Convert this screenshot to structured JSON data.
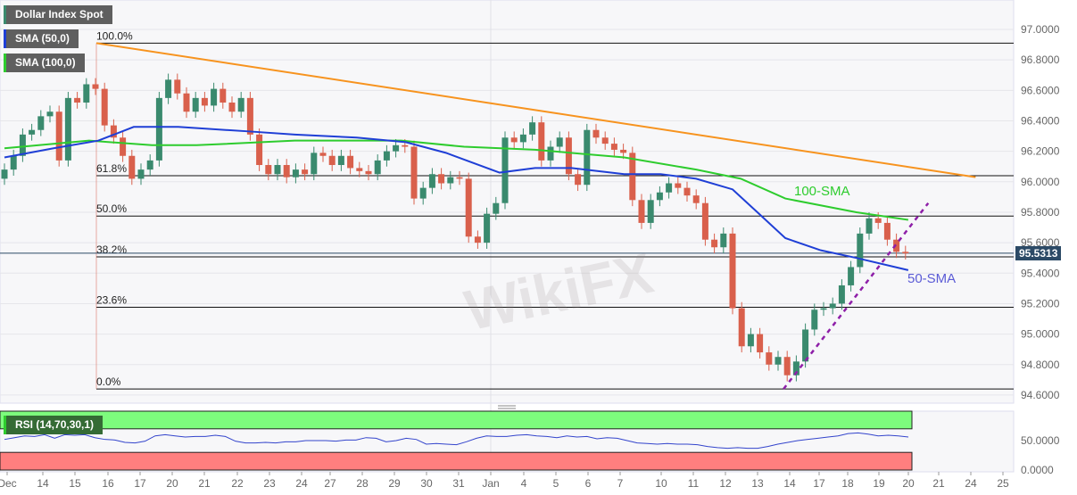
{
  "legend": {
    "title": "Dollar Index Spot",
    "sma50": "SMA (50,0)",
    "sma100": "SMA (100,0)",
    "rsi": "RSI (14,70,30,1)"
  },
  "colors": {
    "up": "#3a8a6e",
    "down": "#d9604c",
    "sma50": "#1f3fd6",
    "sma100": "#2ecc2e",
    "trend": "#f7931e",
    "support": "#8e1fa8",
    "rsi": "#3344cc",
    "ob": "#7dfc7d",
    "os": "#ff7f7f",
    "price_tag": "#2c4a66"
  },
  "annotations": {
    "sma100": "100-SMA",
    "sma50": "50-SMA",
    "watermark": "WikiFX"
  },
  "chart_data": {
    "type": "candlestick",
    "title": "Dollar Index Spot",
    "ylim": [
      94.5,
      97.2
    ],
    "y_ticks": [
      "97.0000",
      "96.8000",
      "96.6000",
      "96.4000",
      "96.2000",
      "96.0000",
      "95.8000",
      "95.6000",
      "95.4000",
      "95.2000",
      "95.0000",
      "94.8000",
      "94.6000"
    ],
    "x_ticks": [
      "Dec",
      "14",
      "15",
      "16",
      "17",
      "20",
      "21",
      "22",
      "23",
      "24",
      "27",
      "28",
      "29",
      "30",
      "31",
      "Jan",
      "4",
      "5",
      "6",
      "7",
      "10",
      "11",
      "12",
      "13",
      "14",
      "17",
      "18",
      "19",
      "20",
      "21",
      "24",
      "25"
    ],
    "last_price": "95.5313",
    "first_open": 96.02,
    "closes": [
      96.08,
      96.17,
      96.31,
      96.34,
      96.43,
      96.46,
      96.14,
      96.55,
      96.52,
      96.64,
      96.61,
      96.37,
      96.29,
      96.17,
      96.02,
      96.08,
      96.14,
      96.55,
      96.67,
      96.58,
      96.46,
      96.55,
      96.5,
      96.61,
      96.52,
      96.46,
      96.55,
      96.31,
      96.11,
      96.05,
      96.11,
      96.03,
      96.08,
      96.05,
      96.19,
      96.17,
      96.11,
      96.17,
      96.09,
      96.07,
      96.05,
      96.14,
      96.2,
      96.24,
      96.23,
      95.89,
      95.96,
      96.05,
      95.99,
      96.03,
      96.02,
      95.64,
      95.6,
      95.79,
      95.86,
      96.29,
      96.26,
      96.31,
      96.39,
      96.14,
      96.23,
      96.29,
      96.05,
      95.98,
      96.34,
      96.29,
      96.25,
      96.21,
      96.19,
      95.88,
      95.73,
      95.88,
      95.93,
      95.99,
      95.96,
      95.91,
      95.86,
      95.62,
      95.57,
      95.66,
      95.17,
      94.92,
      95.0,
      94.88,
      94.8,
      94.85,
      94.73,
      94.82,
      95.03,
      95.16,
      95.17,
      95.2,
      95.32,
      95.44,
      95.66,
      95.76,
      95.73,
      95.62,
      95.54,
      95.53
    ],
    "sma50": [
      [
        0,
        96.16
      ],
      [
        5.4,
        96.22
      ],
      [
        10.3,
        96.27
      ],
      [
        14.2,
        96.36
      ],
      [
        19.1,
        96.36
      ],
      [
        27,
        96.33
      ],
      [
        31.9,
        96.31
      ],
      [
        38.7,
        96.29
      ],
      [
        44.1,
        96.26
      ],
      [
        48.5,
        96.19
      ],
      [
        54.4,
        96.06
      ],
      [
        58.3,
        96.09
      ],
      [
        62.3,
        96.09
      ],
      [
        68.1,
        96.05
      ],
      [
        72.1,
        96.05
      ],
      [
        76,
        96.02
      ],
      [
        80,
        95.95
      ],
      [
        82.9,
        95.79
      ],
      [
        85.8,
        95.63
      ],
      [
        89.7,
        95.55
      ],
      [
        93.6,
        95.5
      ],
      [
        99.3,
        95.42
      ]
    ],
    "sma100": [
      [
        0,
        96.22
      ],
      [
        9.3,
        96.27
      ],
      [
        16.2,
        96.24
      ],
      [
        21.1,
        96.24
      ],
      [
        31.9,
        96.27
      ],
      [
        43.6,
        96.27
      ],
      [
        50.5,
        96.23
      ],
      [
        58.3,
        96.21
      ],
      [
        68.1,
        96.16
      ],
      [
        76,
        96.08
      ],
      [
        80.9,
        96.02
      ],
      [
        85.8,
        95.89
      ],
      [
        93.6,
        95.8
      ],
      [
        99.3,
        95.75
      ]
    ],
    "trendline": [
      [
        10.1,
        96.91
      ],
      [
        106.7,
        96.03
      ]
    ],
    "support_line": [
      [
        85.6,
        94.64
      ],
      [
        101.5,
        95.86
      ]
    ],
    "fibonacci": [
      {
        "label": "100.0%",
        "price": 96.91
      },
      {
        "label": "61.8%",
        "price": 96.04
      },
      {
        "label": "50.0%",
        "price": 95.775
      },
      {
        "label": "38.2%",
        "price": 95.507
      },
      {
        "label": "23.6%",
        "price": 95.176
      },
      {
        "label": "0.0%",
        "price": 94.64
      }
    ],
    "rsi": {
      "ylim": [
        0,
        100
      ],
      "y_ticks": [
        "50.0000",
        "0.0000"
      ],
      "overbought": 70,
      "oversold": 30,
      "values": [
        52,
        55,
        58,
        57,
        60,
        54,
        60,
        59,
        60,
        55,
        52,
        51,
        47,
        46,
        49,
        58,
        60,
        58,
        56,
        57,
        57,
        59,
        57,
        49,
        46,
        46,
        47,
        46,
        48,
        48,
        50,
        50,
        50,
        49,
        51,
        51,
        55,
        54,
        48,
        50,
        54,
        52,
        44,
        45,
        44,
        43,
        48,
        54,
        58,
        57,
        57,
        59,
        60,
        58,
        57,
        55,
        58,
        56,
        57,
        53,
        55,
        54,
        50,
        46,
        45,
        44,
        45,
        44,
        44,
        43,
        40,
        38,
        37,
        38,
        37,
        37,
        40,
        44,
        47,
        50,
        52,
        54,
        56,
        58,
        62,
        63,
        61,
        58,
        59,
        58,
        56
      ]
    }
  }
}
